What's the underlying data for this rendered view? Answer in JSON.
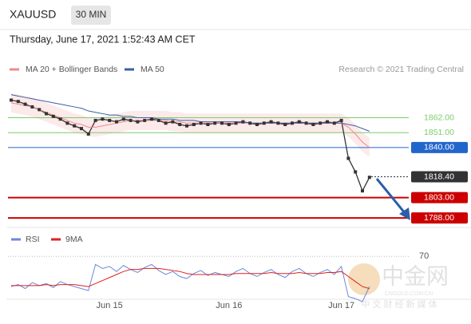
{
  "chart_data": {
    "type": "line",
    "symbol": "XAUUSD",
    "interval": "30 MIN",
    "timestamp": "Thursday, June 17, 2021 1:52:43 AM CET",
    "credit": "Research © 2021 Trading Central",
    "watermark": {
      "name": "中金网",
      "site": "CNGOLD.COM.CN",
      "slogan": "中 文 财 经 新 媒 体"
    },
    "categories": [
      null,
      null,
      null,
      null,
      null,
      null,
      null,
      null,
      null,
      null,
      null,
      null,
      null,
      null,
      "Jun 15",
      null,
      null,
      null,
      null,
      null,
      null,
      null,
      null,
      null,
      null,
      null,
      null,
      null,
      null,
      null,
      null,
      "Jun 16",
      null,
      null,
      null,
      null,
      null,
      null,
      null,
      null,
      null,
      null,
      null,
      null,
      null,
      null,
      null,
      "Jun 17",
      null,
      null,
      null,
      null
    ],
    "ylim": [
      1781,
      1890
    ],
    "series": [
      {
        "name": "Price",
        "color": "#333333",
        "values": [
          1875,
          1874,
          1872,
          1870,
          1868,
          1865,
          1863,
          1861,
          1858,
          1856,
          1854,
          1850,
          1860,
          1861,
          1860,
          1859,
          1861,
          1860,
          1859,
          1860,
          1861,
          1860,
          1858,
          1859,
          1857,
          1856,
          1857,
          1858,
          1857,
          1858,
          1858,
          1857,
          1858,
          1859,
          1858,
          1857,
          1858,
          1859,
          1858,
          1857,
          1858,
          1859,
          1858,
          1857,
          1858,
          1859,
          1858,
          1860,
          1832,
          1822,
          1808,
          1818
        ]
      },
      {
        "name": "MA 20 + Bollinger Bands",
        "color": "#f08a8a",
        "values": [
          1873,
          1872,
          1871,
          1870,
          1868,
          1866,
          1864,
          1862,
          1860,
          1858,
          1857,
          1855,
          1855,
          1856,
          1857,
          1858,
          1859,
          1860,
          1860,
          1860,
          1860,
          1860,
          1860,
          1859,
          1859,
          1858,
          1858,
          1858,
          1858,
          1858,
          1858,
          1858,
          1858,
          1858,
          1858,
          1858,
          1858,
          1858,
          1858,
          1858,
          1858,
          1858,
          1858,
          1858,
          1858,
          1858,
          1858,
          1858,
          1855,
          1850,
          1844,
          1840
        ]
      },
      {
        "name": "MA 50",
        "color": "#3d5ea8",
        "values": [
          1879,
          1878,
          1877,
          1876,
          1875,
          1874,
          1873,
          1872,
          1871,
          1870,
          1869,
          1867,
          1866,
          1865,
          1864,
          1864,
          1863,
          1863,
          1862,
          1862,
          1862,
          1861,
          1861,
          1861,
          1860,
          1860,
          1860,
          1859,
          1859,
          1859,
          1859,
          1859,
          1859,
          1859,
          1858,
          1858,
          1858,
          1858,
          1858,
          1858,
          1858,
          1858,
          1858,
          1858,
          1858,
          1858,
          1858,
          1858,
          1857,
          1856,
          1854,
          1852
        ]
      }
    ],
    "levels": [
      {
        "value": 1862,
        "label": "1862.00",
        "color": "#7ccb6a",
        "boxed": false
      },
      {
        "value": 1851,
        "label": "1851.00",
        "color": "#7ccb6a",
        "boxed": false
      },
      {
        "value": 1840,
        "label": "1840.00",
        "color": "#2266cc",
        "boxed": true
      },
      {
        "value": 1818.4,
        "label": "1818.40",
        "color": "#333333",
        "boxed": true
      },
      {
        "value": 1803,
        "label": "1803.00",
        "color": "#cc0000",
        "boxed": true
      },
      {
        "value": 1788,
        "label": "1788.00",
        "color": "#cc0000",
        "boxed": true
      }
    ],
    "rsi": {
      "ylim": [
        25,
        75
      ],
      "yticks": [
        70
      ],
      "series": [
        {
          "name": "RSI",
          "color": "#6b88d8",
          "values": [
            40,
            42,
            38,
            44,
            41,
            43,
            39,
            45,
            42,
            40,
            38,
            36,
            62,
            58,
            60,
            55,
            61,
            57,
            54,
            59,
            62,
            56,
            52,
            55,
            50,
            48,
            53,
            56,
            51,
            54,
            52,
            50,
            55,
            58,
            53,
            50,
            54,
            57,
            52,
            49,
            55,
            58,
            53,
            50,
            54,
            57,
            52,
            60,
            30,
            28,
            25,
            40
          ]
        },
        {
          "name": "9MA",
          "color": "#dd2222",
          "values": [
            41,
            41,
            41,
            41,
            41,
            42,
            41,
            42,
            42,
            42,
            41,
            40,
            43,
            46,
            49,
            52,
            55,
            57,
            57,
            58,
            58,
            58,
            57,
            56,
            55,
            53,
            52,
            52,
            52,
            52,
            52,
            52,
            53,
            53,
            53,
            53,
            53,
            54,
            53,
            53,
            53,
            54,
            53,
            53,
            53,
            54,
            54,
            55,
            50,
            45,
            40,
            38
          ]
        }
      ]
    }
  }
}
